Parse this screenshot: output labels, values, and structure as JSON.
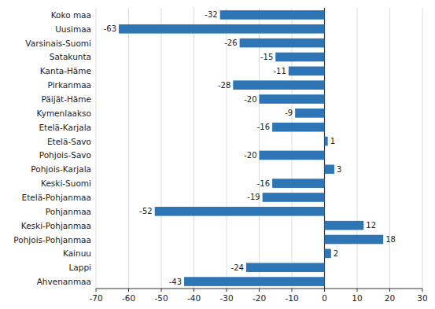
{
  "chart_data": {
    "type": "bar",
    "orientation": "horizontal",
    "categories": [
      "Koko maa",
      "Uusimaa",
      "Varsinais-Suomi",
      "Satakunta",
      "Kanta-Häme",
      "Pirkanmaa",
      "Päijät-Häme",
      "Kymenlaakso",
      "Etelä-Karjala",
      "Etelä-Savo",
      "Pohjois-Savo",
      "Pohjois-Karjala",
      "Keski-Suomi",
      "Etelä-Pohjanmaa",
      "Pohjanmaa",
      "Keski-Pohjanmaa",
      "Pohjois-Pohjanmaa",
      "Kainuu",
      "Lappi",
      "Ahvenanmaa"
    ],
    "values": [
      -32,
      -63,
      -26,
      -15,
      -11,
      -28,
      -20,
      -9,
      -16,
      1,
      -20,
      3,
      -16,
      -19,
      -52,
      12,
      18,
      2,
      -24,
      -43
    ],
    "color": "#2E75B6",
    "xlim": [
      -70,
      30
    ],
    "xticks": [
      -70,
      -60,
      -50,
      -40,
      -30,
      -20,
      -10,
      0,
      10,
      20,
      30
    ],
    "grid": true,
    "data_labels": true
  }
}
